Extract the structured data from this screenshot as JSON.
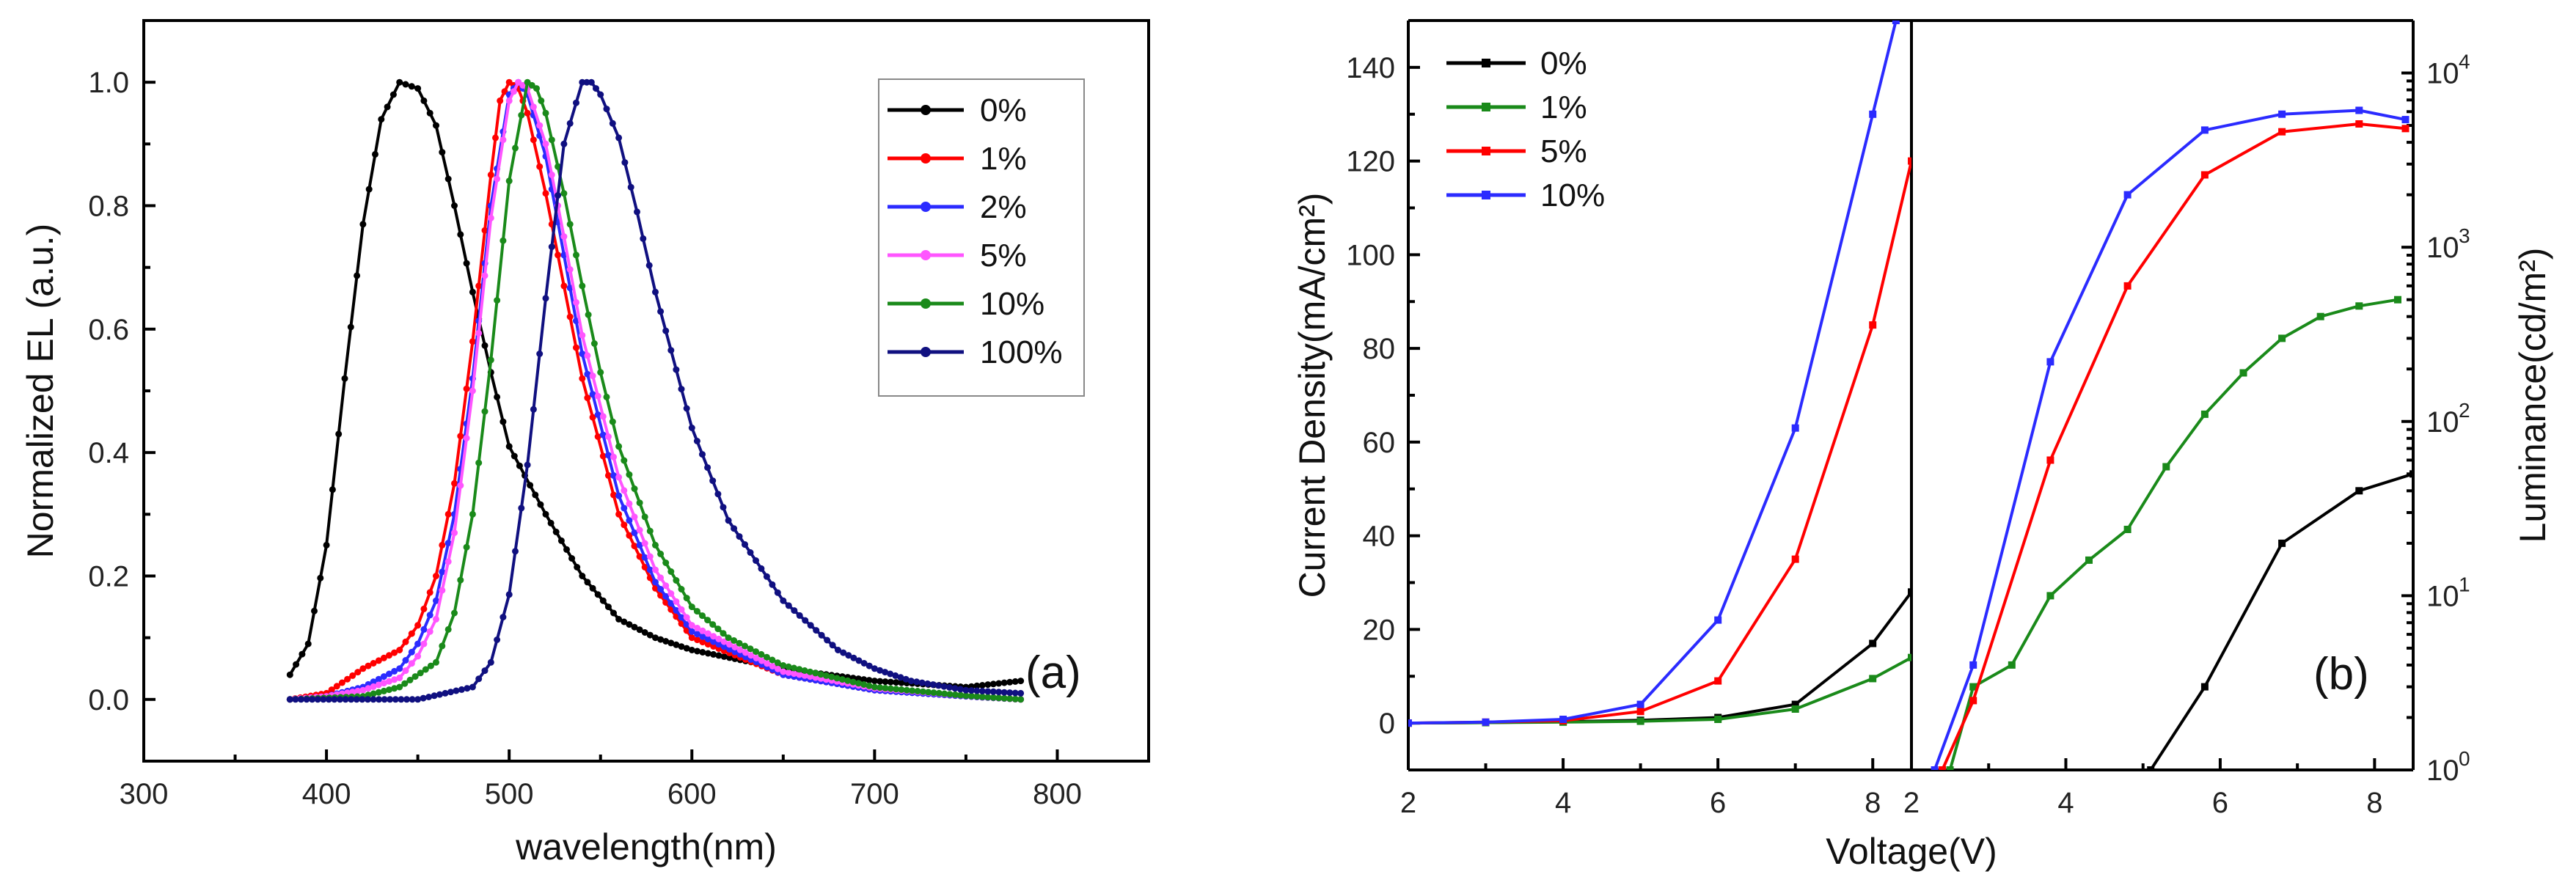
{
  "chart_data": [
    {
      "type": "line",
      "panel": "(a)",
      "xlabel": "wavelength(nm)",
      "ylabel": "Normalized EL (a.u.)",
      "xlim": [
        300,
        850
      ],
      "ylim": [
        -0.1,
        1.1
      ],
      "xticks": [
        "300",
        "400",
        "500",
        "600",
        "700",
        "800"
      ],
      "yticks": [
        "0.0",
        "0.2",
        "0.4",
        "0.6",
        "0.8",
        "1.0"
      ],
      "legend_position": "top-right",
      "series": [
        {
          "name": "0%",
          "color": "#000000",
          "x": [
            380,
            390,
            400,
            410,
            420,
            430,
            440,
            450,
            460,
            470,
            480,
            490,
            500,
            520,
            540,
            560,
            580,
            600,
            650,
            700,
            750,
            780
          ],
          "y": [
            0.04,
            0.09,
            0.25,
            0.52,
            0.77,
            0.94,
            1.0,
            0.99,
            0.93,
            0.8,
            0.66,
            0.53,
            0.41,
            0.3,
            0.2,
            0.13,
            0.1,
            0.08,
            0.05,
            0.03,
            0.02,
            0.03
          ]
        },
        {
          "name": "1%",
          "color": "#ff0000",
          "x": [
            380,
            400,
            420,
            440,
            450,
            460,
            470,
            480,
            490,
            495,
            500,
            505,
            510,
            520,
            530,
            540,
            560,
            580,
            600,
            650,
            700,
            750,
            780
          ],
          "y": [
            0.0,
            0.01,
            0.05,
            0.08,
            0.12,
            0.2,
            0.35,
            0.58,
            0.85,
            0.97,
            1.0,
            0.99,
            0.95,
            0.82,
            0.67,
            0.52,
            0.3,
            0.18,
            0.1,
            0.04,
            0.015,
            0.005,
            0.0
          ]
        },
        {
          "name": "2%",
          "color": "#2b2bff",
          "x": [
            380,
            400,
            420,
            440,
            450,
            460,
            470,
            480,
            490,
            500,
            505,
            510,
            520,
            530,
            540,
            560,
            580,
            600,
            650,
            700,
            750,
            780
          ],
          "y": [
            0.0,
            0.005,
            0.02,
            0.05,
            0.09,
            0.16,
            0.3,
            0.52,
            0.8,
            0.98,
            1.0,
            0.98,
            0.88,
            0.72,
            0.56,
            0.33,
            0.19,
            0.11,
            0.04,
            0.015,
            0.005,
            0.0
          ]
        },
        {
          "name": "5%",
          "color": "#ff55ff",
          "x": [
            380,
            400,
            420,
            440,
            450,
            460,
            470,
            480,
            490,
            500,
            505,
            510,
            520,
            530,
            540,
            560,
            580,
            600,
            650,
            700,
            750,
            780
          ],
          "y": [
            0.0,
            0.005,
            0.015,
            0.035,
            0.07,
            0.13,
            0.27,
            0.5,
            0.78,
            0.97,
            1.0,
            0.99,
            0.9,
            0.75,
            0.59,
            0.36,
            0.21,
            0.12,
            0.045,
            0.018,
            0.006,
            0.0
          ]
        },
        {
          "name": "10%",
          "color": "#1a8a1a",
          "x": [
            380,
            420,
            440,
            460,
            470,
            480,
            490,
            500,
            510,
            515,
            520,
            530,
            540,
            550,
            560,
            580,
            600,
            620,
            650,
            700,
            750,
            780
          ],
          "y": [
            0.0,
            0.005,
            0.02,
            0.06,
            0.14,
            0.3,
            0.55,
            0.84,
            1.0,
            0.99,
            0.95,
            0.82,
            0.67,
            0.53,
            0.41,
            0.25,
            0.15,
            0.1,
            0.055,
            0.02,
            0.006,
            0.0
          ]
        },
        {
          "name": "100%",
          "color": "#101080",
          "x": [
            380,
            450,
            480,
            490,
            500,
            510,
            520,
            530,
            540,
            545,
            550,
            560,
            570,
            580,
            600,
            620,
            650,
            680,
            700,
            720,
            750,
            780
          ],
          "y": [
            0.0,
            0.0,
            0.02,
            0.06,
            0.17,
            0.38,
            0.65,
            0.9,
            1.0,
            1.0,
            0.98,
            0.91,
            0.79,
            0.66,
            0.44,
            0.29,
            0.16,
            0.08,
            0.05,
            0.03,
            0.015,
            0.01
          ]
        }
      ]
    },
    {
      "type": "line",
      "panel": "(b)",
      "xlabel": "Voltage(V)",
      "ylabel_left": "Current Density(mA/cm²)",
      "ylabel_right": "Luminance(cd/m²)",
      "left": {
        "xlim": [
          2,
          8.5
        ],
        "ylim": [
          -10,
          150
        ],
        "xticks": [
          "2",
          "4",
          "6",
          "8"
        ],
        "yticks": [
          "0",
          "20",
          "40",
          "60",
          "80",
          "100",
          "120",
          "140"
        ],
        "legend_position": "top-left",
        "series": [
          {
            "name": "0%",
            "color": "#000000",
            "x": [
              2,
              3,
              4,
              5,
              6,
              7,
              8,
              8.5
            ],
            "y": [
              0,
              0.1,
              0.3,
              0.6,
              1.2,
              4,
              17,
              28
            ]
          },
          {
            "name": "1%",
            "color": "#1a8a1a",
            "x": [
              2,
              3,
              4,
              5,
              6,
              7,
              8,
              8.5
            ],
            "y": [
              0,
              0.1,
              0.2,
              0.4,
              0.8,
              3,
              9.5,
              14
            ]
          },
          {
            "name": "5%",
            "color": "#ff0000",
            "x": [
              2,
              3,
              4,
              5,
              6,
              7,
              8,
              8.5
            ],
            "y": [
              0,
              0.2,
              0.5,
              2.5,
              9,
              35,
              85,
              120
            ]
          },
          {
            "name": "10%",
            "color": "#2b2bff",
            "x": [
              2,
              3,
              4,
              5,
              6,
              7,
              8,
              8.3
            ],
            "y": [
              0,
              0.2,
              0.8,
              4,
              22,
              63,
              130,
              150
            ]
          }
        ]
      },
      "right": {
        "xlim": [
          2,
          8.5
        ],
        "ylim": [
          1,
          20000
        ],
        "scale": "log",
        "xticks": [
          "2",
          "4",
          "6",
          "8"
        ],
        "yticks": [
          "10",
          "10",
          "10",
          "10",
          "10"
        ],
        "ytick_exponents": [
          "0",
          "1",
          "2",
          "3",
          "4"
        ],
        "series": [
          {
            "name": "0%",
            "color": "#000000",
            "x": [
              5.1,
              5.8,
              6.8,
              7.8,
              8.5
            ],
            "y": [
              1,
              3,
              20,
              40,
              50
            ]
          },
          {
            "name": "1%",
            "color": "#1a8a1a",
            "x": [
              2.5,
              2.8,
              3.3,
              3.8,
              4.3,
              4.8,
              5.3,
              5.8,
              6.3,
              6.8,
              7.3,
              7.8,
              8.3
            ],
            "y": [
              1,
              3,
              4,
              10,
              16,
              24,
              55,
              110,
              190,
              300,
              400,
              460,
              500
            ]
          },
          {
            "name": "5%",
            "color": "#ff0000",
            "x": [
              2.4,
              2.8,
              3.8,
              4.8,
              5.8,
              6.8,
              7.8,
              8.4
            ],
            "y": [
              1,
              2.5,
              60,
              600,
              2600,
              4600,
              5100,
              4800
            ]
          },
          {
            "name": "10%",
            "color": "#2b2bff",
            "x": [
              2.3,
              2.8,
              3.8,
              4.8,
              5.8,
              6.8,
              7.8,
              8.4
            ],
            "y": [
              1,
              4,
              220,
              2000,
              4700,
              5800,
              6100,
              5400
            ]
          }
        ]
      }
    }
  ]
}
